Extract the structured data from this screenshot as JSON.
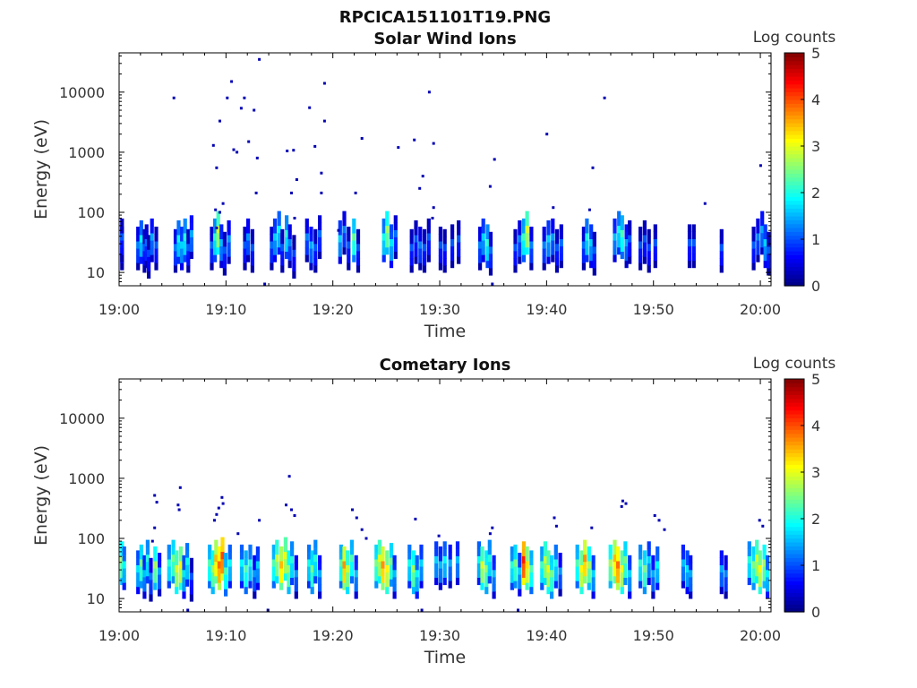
{
  "figure": {
    "title": "RPCICA151101T19.PNG"
  },
  "chart_data": [
    {
      "type": "heatmap",
      "title": "Solar Wind Ions",
      "xlabel": "Time",
      "ylabel": "Energy (eV)",
      "x_ticks": [
        "19:00",
        "19:10",
        "19:20",
        "19:30",
        "19:40",
        "19:50",
        "20:00"
      ],
      "x_range_minutes": [
        0,
        61
      ],
      "y_scale": "log",
      "y_ticks": [
        "10",
        "100",
        "1000",
        "10000"
      ],
      "y_range": [
        6,
        45000
      ],
      "colorbar": {
        "label": "Log counts",
        "ticks": [
          "0",
          "1",
          "2",
          "3",
          "4",
          "5"
        ],
        "range": [
          0,
          5
        ],
        "colormap": "jet"
      },
      "band_cells": [
        [
          0.1,
          22,
          1.0
        ],
        [
          0.1,
          30,
          1.0
        ],
        [
          1.6,
          22,
          1.2
        ],
        [
          1.9,
          28,
          1.8
        ],
        [
          2.2,
          20,
          1.0
        ],
        [
          2.4,
          24,
          1.1
        ],
        [
          2.6,
          16,
          0.9
        ],
        [
          2.9,
          30,
          1.4
        ],
        [
          3.3,
          22,
          1.0
        ],
        [
          5.1,
          20,
          1.2
        ],
        [
          5.4,
          28,
          1.9
        ],
        [
          5.7,
          22,
          1.6
        ],
        [
          6.0,
          30,
          2.0
        ],
        [
          6.3,
          20,
          1.0
        ],
        [
          6.6,
          34,
          1.4
        ],
        [
          8.5,
          22,
          1.1
        ],
        [
          8.8,
          30,
          2.0
        ],
        [
          9.1,
          40,
          2.9
        ],
        [
          9.4,
          24,
          1.5
        ],
        [
          9.7,
          18,
          1.0
        ],
        [
          10.1,
          28,
          1.3
        ],
        [
          11.6,
          22,
          1.0
        ],
        [
          11.9,
          30,
          1.3
        ],
        [
          12.3,
          20,
          1.0
        ],
        [
          14.1,
          22,
          1.1
        ],
        [
          14.4,
          30,
          1.6
        ],
        [
          14.8,
          40,
          1.8
        ],
        [
          15.1,
          20,
          1.0
        ],
        [
          15.5,
          34,
          2.0
        ],
        [
          15.8,
          24,
          1.2
        ],
        [
          16.2,
          16,
          0.9
        ],
        [
          17.4,
          30,
          1.2
        ],
        [
          17.8,
          22,
          1.4
        ],
        [
          18.2,
          20,
          1.0
        ],
        [
          18.6,
          34,
          1.1
        ],
        [
          20.5,
          28,
          1.6
        ],
        [
          20.9,
          40,
          1.2
        ],
        [
          21.3,
          22,
          1.0
        ],
        [
          21.8,
          30,
          2.3
        ],
        [
          22.2,
          20,
          1.0
        ],
        [
          24.6,
          30,
          1.9
        ],
        [
          24.9,
          40,
          2.6
        ],
        [
          25.3,
          24,
          1.7
        ],
        [
          25.7,
          34,
          1.1
        ],
        [
          27.2,
          20,
          1.0
        ],
        [
          27.6,
          28,
          1.0
        ],
        [
          28.0,
          22,
          1.2
        ],
        [
          28.4,
          20,
          1.0
        ],
        [
          28.8,
          30,
          1.0
        ],
        [
          29.9,
          22,
          1.0
        ],
        [
          30.3,
          20,
          0.9
        ],
        [
          31.0,
          24,
          1.0
        ],
        [
          31.6,
          28,
          1.0
        ],
        [
          33.6,
          22,
          1.2
        ],
        [
          33.9,
          30,
          1.6
        ],
        [
          34.3,
          24,
          2.0
        ],
        [
          34.6,
          18,
          1.1
        ],
        [
          36.9,
          20,
          1.0
        ],
        [
          37.3,
          28,
          1.2
        ],
        [
          37.7,
          30,
          2.1
        ],
        [
          38.0,
          40,
          2.9
        ],
        [
          38.4,
          22,
          1.2
        ],
        [
          39.6,
          22,
          1.2
        ],
        [
          40.0,
          28,
          1.6
        ],
        [
          40.4,
          30,
          1.3
        ],
        [
          40.8,
          20,
          1.0
        ],
        [
          41.2,
          24,
          1.1
        ],
        [
          43.3,
          22,
          1.1
        ],
        [
          43.6,
          30,
          1.9
        ],
        [
          44.0,
          24,
          1.6
        ],
        [
          44.3,
          18,
          1.0
        ],
        [
          46.2,
          30,
          1.5
        ],
        [
          46.6,
          40,
          1.9
        ],
        [
          46.9,
          34,
          2.2
        ],
        [
          47.3,
          24,
          1.4
        ],
        [
          47.6,
          28,
          1.0
        ],
        [
          48.6,
          22,
          1.0
        ],
        [
          49.0,
          28,
          1.0
        ],
        [
          49.4,
          20,
          0.9
        ],
        [
          50.0,
          24,
          1.0
        ],
        [
          53.2,
          24,
          1.0
        ],
        [
          53.6,
          24,
          1.0
        ],
        [
          56.2,
          20,
          1.0
        ],
        [
          59.2,
          22,
          1.0
        ],
        [
          59.6,
          30,
          1.2
        ],
        [
          60.0,
          40,
          1.4
        ],
        [
          60.3,
          24,
          1.6
        ],
        [
          60.6,
          18,
          1.0
        ]
      ],
      "scatter_points": [
        [
          5.0,
          8000
        ],
        [
          8.7,
          1300
        ],
        [
          9.0,
          550
        ],
        [
          9.3,
          3300
        ],
        [
          10.0,
          8000
        ],
        [
          10.4,
          15000
        ],
        [
          10.6,
          1100
        ],
        [
          10.9,
          1000
        ],
        [
          11.3,
          5400
        ],
        [
          11.6,
          8000
        ],
        [
          12.0,
          1500
        ],
        [
          12.5,
          5000
        ],
        [
          12.8,
          800
        ],
        [
          13.0,
          35000
        ],
        [
          12.7,
          210
        ],
        [
          15.6,
          1050
        ],
        [
          16.2,
          1080
        ],
        [
          16.5,
          350
        ],
        [
          16.0,
          210
        ],
        [
          16.3,
          80
        ],
        [
          17.7,
          5500
        ],
        [
          18.2,
          1250
        ],
        [
          18.8,
          450
        ],
        [
          19.1,
          14000
        ],
        [
          19.1,
          3300
        ],
        [
          18.8,
          210
        ],
        [
          22.0,
          210
        ],
        [
          22.6,
          1700
        ],
        [
          26.0,
          1200
        ],
        [
          27.5,
          1600
        ],
        [
          28.3,
          400
        ],
        [
          28.0,
          250
        ],
        [
          28.9,
          10000
        ],
        [
          29.3,
          1400
        ],
        [
          29.3,
          120
        ],
        [
          29.2,
          80
        ],
        [
          34.6,
          270
        ],
        [
          35.0,
          760
        ],
        [
          39.9,
          2000
        ],
        [
          40.5,
          120
        ],
        [
          44.2,
          550
        ],
        [
          43.9,
          110
        ],
        [
          45.3,
          8000
        ],
        [
          54.7,
          140
        ],
        [
          59.9,
          600
        ],
        [
          9.3,
          100
        ],
        [
          9.6,
          140
        ],
        [
          8.9,
          110
        ],
        [
          9.0,
          55
        ],
        [
          13.5,
          6
        ],
        [
          20.4,
          50
        ],
        [
          34.8,
          6
        ]
      ]
    },
    {
      "type": "heatmap",
      "title": "Cometary Ions",
      "xlabel": "Time",
      "ylabel": "Energy (eV)",
      "x_ticks": [
        "19:00",
        "19:10",
        "19:20",
        "19:30",
        "19:40",
        "19:50",
        "20:00"
      ],
      "x_range_minutes": [
        0,
        61
      ],
      "y_scale": "log",
      "y_ticks": [
        "10",
        "100",
        "1000",
        "10000"
      ],
      "y_range": [
        6,
        45000
      ],
      "colorbar": {
        "label": "Log counts",
        "ticks": [
          "0",
          "1",
          "2",
          "3",
          "4",
          "5"
        ],
        "range": [
          0,
          5
        ],
        "colormap": "jet"
      },
      "band_cells": [
        [
          0.1,
          34,
          2.6
        ],
        [
          0.3,
          28,
          1.8
        ],
        [
          1.6,
          24,
          1.7
        ],
        [
          1.9,
          30,
          2.4
        ],
        [
          2.2,
          20,
          1.5
        ],
        [
          2.5,
          36,
          2.0
        ],
        [
          2.8,
          18,
          1.2
        ],
        [
          3.2,
          28,
          2.6
        ],
        [
          3.6,
          22,
          1.4
        ],
        [
          4.5,
          30,
          2.0
        ],
        [
          4.9,
          36,
          2.4
        ],
        [
          5.2,
          24,
          2.9
        ],
        [
          5.6,
          28,
          3.1
        ],
        [
          5.9,
          20,
          1.7
        ],
        [
          6.2,
          32,
          1.9
        ],
        [
          6.6,
          18,
          1.0
        ],
        [
          8.3,
          30,
          2.2
        ],
        [
          8.6,
          24,
          2.6
        ],
        [
          8.9,
          36,
          3.4
        ],
        [
          9.2,
          28,
          3.8
        ],
        [
          9.5,
          40,
          4.0
        ],
        [
          9.8,
          22,
          2.2
        ],
        [
          10.2,
          30,
          1.8
        ],
        [
          11.3,
          30,
          1.8
        ],
        [
          11.7,
          24,
          2.2
        ],
        [
          12.1,
          30,
          1.9
        ],
        [
          12.5,
          20,
          1.3
        ],
        [
          12.8,
          28,
          1.6
        ],
        [
          14.3,
          30,
          2.2
        ],
        [
          14.6,
          36,
          2.8
        ],
        [
          15.0,
          28,
          3.4
        ],
        [
          15.4,
          40,
          3.0
        ],
        [
          15.7,
          24,
          2.6
        ],
        [
          16.0,
          34,
          2.0
        ],
        [
          16.4,
          20,
          1.3
        ],
        [
          17.6,
          30,
          1.9
        ],
        [
          17.9,
          24,
          2.4
        ],
        [
          18.2,
          36,
          2.0
        ],
        [
          18.6,
          20,
          1.4
        ],
        [
          20.6,
          30,
          2.2
        ],
        [
          20.9,
          28,
          3.6
        ],
        [
          21.2,
          24,
          2.8
        ],
        [
          21.6,
          36,
          2.2
        ],
        [
          22.0,
          20,
          1.5
        ],
        [
          23.9,
          30,
          2.4
        ],
        [
          24.2,
          36,
          2.9
        ],
        [
          24.5,
          28,
          3.6
        ],
        [
          24.9,
          24,
          3.1
        ],
        [
          25.3,
          32,
          2.4
        ],
        [
          25.6,
          20,
          1.5
        ],
        [
          27.0,
          30,
          1.9
        ],
        [
          27.4,
          24,
          2.6
        ],
        [
          27.7,
          20,
          1.8
        ],
        [
          28.1,
          30,
          1.6
        ],
        [
          29.5,
          34,
          1.6
        ],
        [
          29.9,
          28,
          1.5
        ],
        [
          30.3,
          34,
          1.8
        ],
        [
          30.8,
          30,
          1.4
        ],
        [
          31.5,
          34,
          1.5
        ],
        [
          33.5,
          34,
          1.8
        ],
        [
          33.8,
          28,
          2.9
        ],
        [
          34.2,
          24,
          2.5
        ],
        [
          34.5,
          36,
          2.0
        ],
        [
          34.9,
          20,
          1.5
        ],
        [
          36.6,
          28,
          2.0
        ],
        [
          36.9,
          30,
          2.4
        ],
        [
          37.3,
          22,
          1.6
        ],
        [
          37.7,
          34,
          4.2
        ],
        [
          38.0,
          28,
          3.2
        ],
        [
          38.4,
          24,
          2.2
        ],
        [
          39.4,
          28,
          2.1
        ],
        [
          39.7,
          34,
          2.8
        ],
        [
          40.0,
          24,
          3.0
        ],
        [
          40.3,
          20,
          2.4
        ],
        [
          40.7,
          30,
          1.9
        ],
        [
          41.1,
          22,
          1.3
        ],
        [
          42.7,
          30,
          2.2
        ],
        [
          43.1,
          24,
          3.1
        ],
        [
          43.4,
          36,
          3.6
        ],
        [
          43.8,
          28,
          2.6
        ],
        [
          44.2,
          20,
          1.6
        ],
        [
          45.8,
          30,
          2.6
        ],
        [
          46.2,
          36,
          3.4
        ],
        [
          46.5,
          28,
          3.8
        ],
        [
          46.9,
          24,
          3.0
        ],
        [
          47.2,
          34,
          2.4
        ],
        [
          47.6,
          20,
          1.6
        ],
        [
          48.6,
          30,
          2.0
        ],
        [
          49.0,
          24,
          2.4
        ],
        [
          49.4,
          34,
          1.6
        ],
        [
          49.8,
          20,
          1.4
        ],
        [
          50.2,
          28,
          1.8
        ],
        [
          52.6,
          30,
          1.5
        ],
        [
          53.0,
          24,
          1.7
        ],
        [
          53.3,
          20,
          1.4
        ],
        [
          56.2,
          24,
          1.4
        ],
        [
          56.6,
          20,
          1.2
        ],
        [
          58.8,
          34,
          2.0
        ],
        [
          59.2,
          28,
          2.4
        ],
        [
          59.5,
          36,
          2.9
        ],
        [
          59.8,
          24,
          3.1
        ],
        [
          60.2,
          30,
          2.6
        ],
        [
          60.5,
          20,
          1.8
        ]
      ],
      "scatter_points": [
        [
          3.2,
          520
        ],
        [
          3.4,
          400
        ],
        [
          3.2,
          150
        ],
        [
          5.6,
          700
        ],
        [
          5.4,
          360
        ],
        [
          5.5,
          300
        ],
        [
          9.5,
          480
        ],
        [
          9.2,
          320
        ],
        [
          9.0,
          250
        ],
        [
          8.8,
          200
        ],
        [
          9.6,
          380
        ],
        [
          15.8,
          1080
        ],
        [
          15.5,
          360
        ],
        [
          16.0,
          300
        ],
        [
          16.3,
          240
        ],
        [
          13.0,
          200
        ],
        [
          21.7,
          300
        ],
        [
          22.1,
          220
        ],
        [
          27.6,
          210
        ],
        [
          29.8,
          110
        ],
        [
          34.8,
          150
        ],
        [
          34.6,
          120
        ],
        [
          40.6,
          220
        ],
        [
          40.8,
          160
        ],
        [
          44.1,
          150
        ],
        [
          47.0,
          420
        ],
        [
          47.3,
          380
        ],
        [
          46.9,
          340
        ],
        [
          50.0,
          240
        ],
        [
          50.4,
          200
        ],
        [
          50.9,
          140
        ],
        [
          59.8,
          200
        ],
        [
          60.1,
          160
        ],
        [
          23.0,
          100
        ],
        [
          22.6,
          140
        ],
        [
          11.0,
          120
        ],
        [
          3.0,
          90
        ],
        [
          6.3,
          6
        ],
        [
          13.8,
          6
        ],
        [
          28.2,
          6
        ],
        [
          37.2,
          6
        ]
      ]
    }
  ]
}
